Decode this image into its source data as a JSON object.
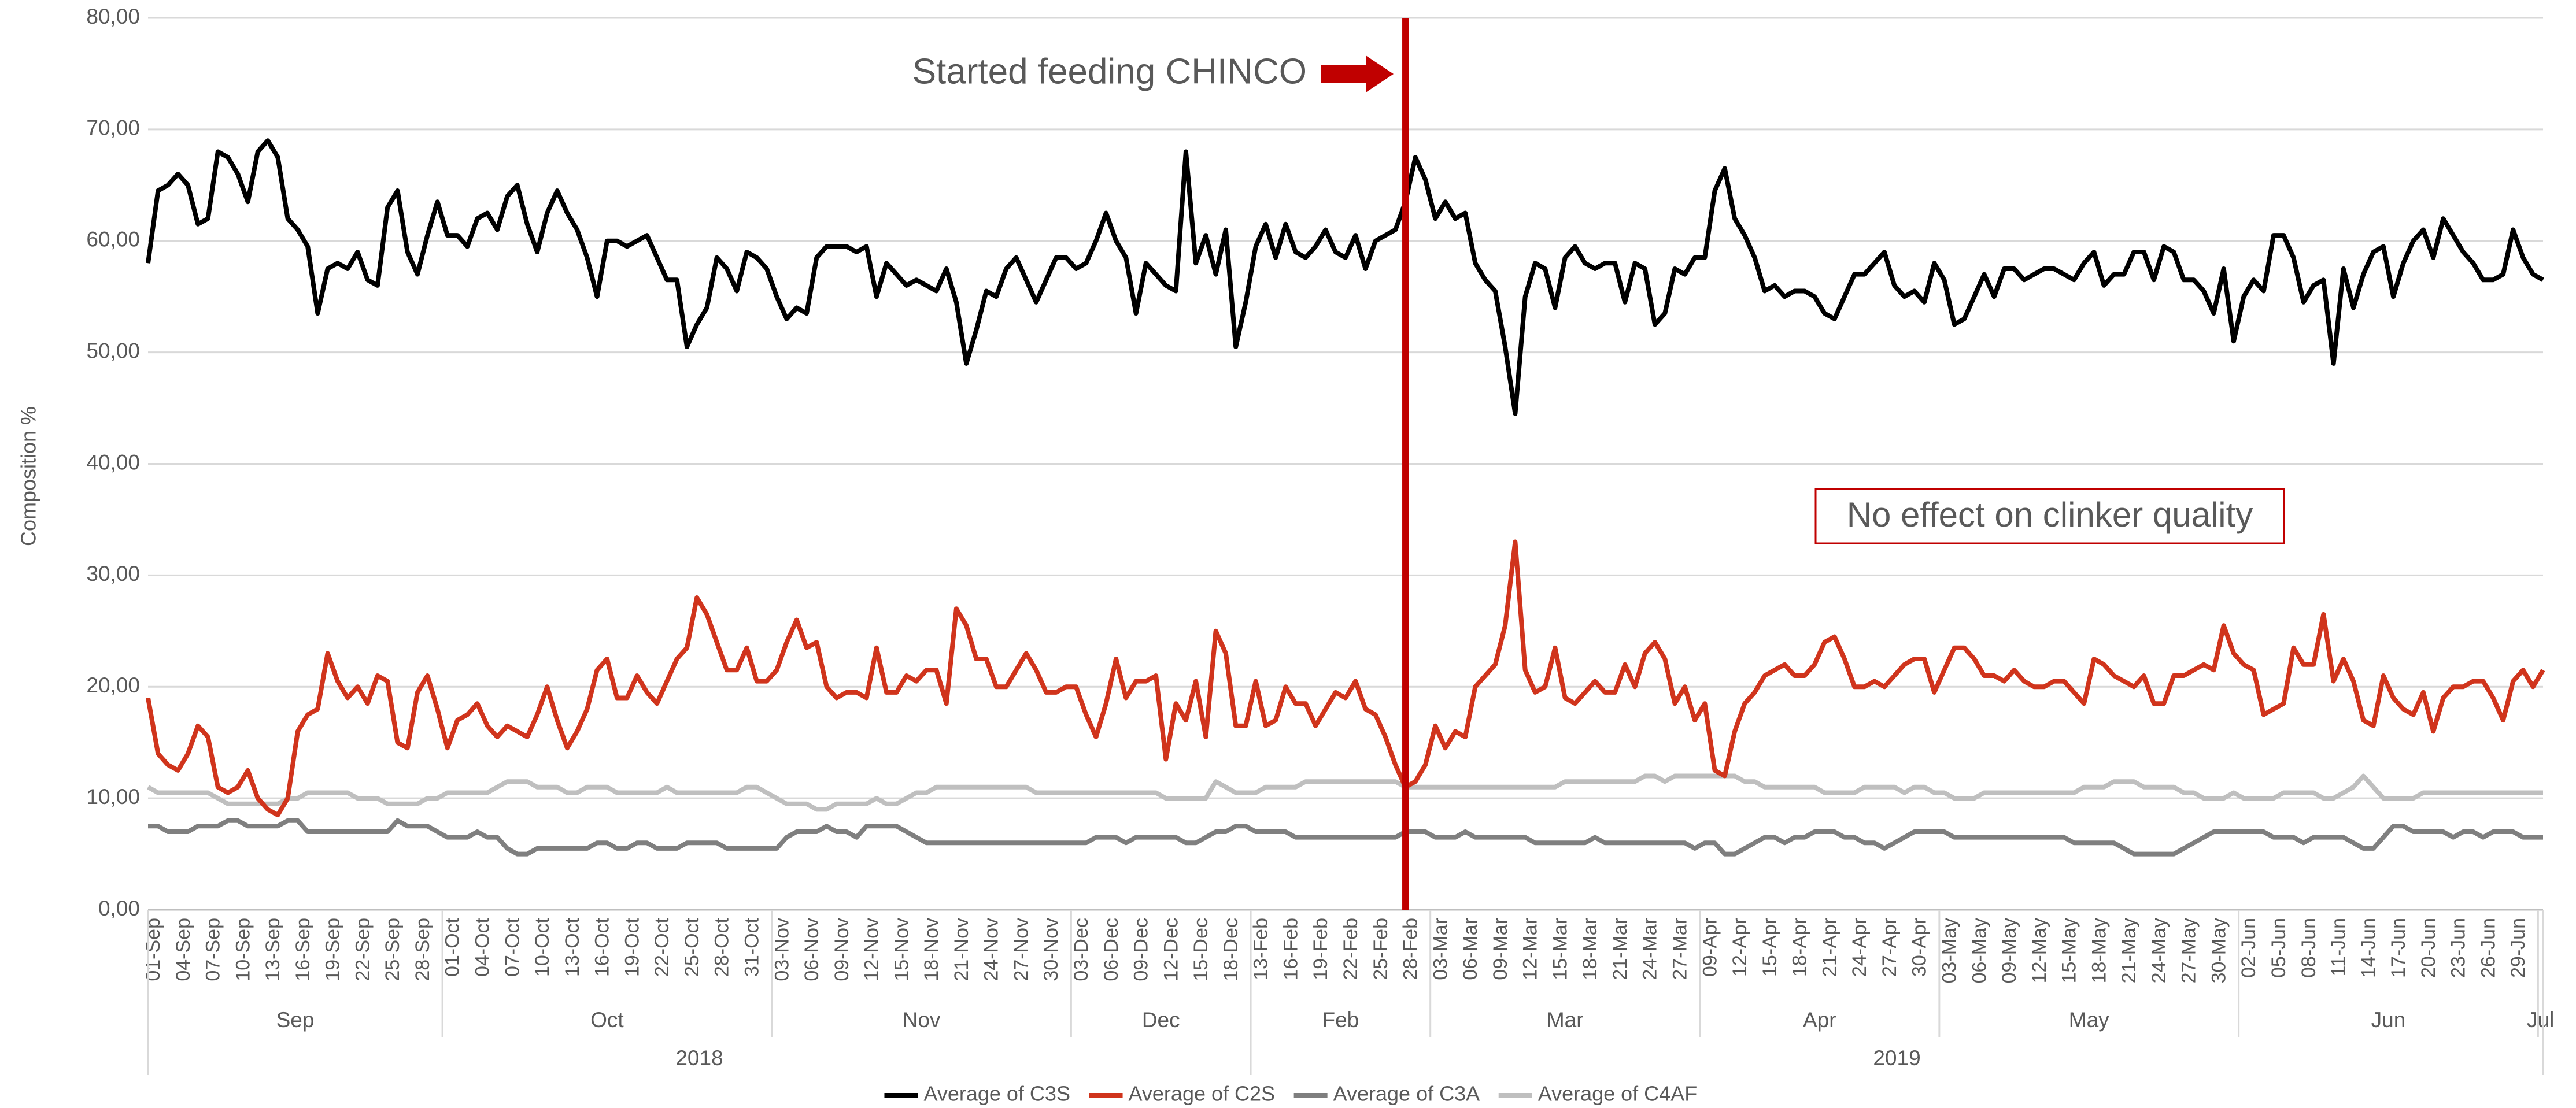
{
  "chart_data": {
    "type": "line",
    "ylabel": "Composition %",
    "ylim": [
      0,
      80
    ],
    "yticks": [
      {
        "value": 0,
        "label": "0,00"
      },
      {
        "value": 10,
        "label": "10,00"
      },
      {
        "value": 20,
        "label": "20,00"
      },
      {
        "value": 30,
        "label": "30,00"
      },
      {
        "value": 40,
        "label": "40,00"
      },
      {
        "value": 50,
        "label": "50,00"
      },
      {
        "value": 60,
        "label": "60,00"
      },
      {
        "value": 70,
        "label": "70,00"
      },
      {
        "value": 80,
        "label": "80,00"
      }
    ],
    "grid": true,
    "legend": "bottom",
    "categories": [
      "01-Sep",
      null,
      null,
      "04-Sep",
      null,
      null,
      "07-Sep",
      null,
      null,
      "10-Sep",
      null,
      null,
      "13-Sep",
      null,
      null,
      "16-Sep",
      null,
      null,
      "19-Sep",
      null,
      null,
      "22-Sep",
      null,
      null,
      "25-Sep",
      null,
      null,
      "28-Sep",
      null,
      null,
      "01-Oct",
      null,
      null,
      "04-Oct",
      null,
      null,
      "07-Oct",
      null,
      null,
      "10-Oct",
      null,
      null,
      "13-Oct",
      null,
      null,
      "16-Oct",
      null,
      null,
      "19-Oct",
      null,
      null,
      "22-Oct",
      null,
      null,
      "25-Oct",
      null,
      null,
      "28-Oct",
      null,
      null,
      "31-Oct",
      null,
      null,
      "03-Nov",
      null,
      null,
      "06-Nov",
      null,
      null,
      "09-Nov",
      null,
      null,
      "12-Nov",
      null,
      null,
      "15-Nov",
      null,
      null,
      "18-Nov",
      null,
      null,
      "21-Nov",
      null,
      null,
      "24-Nov",
      null,
      null,
      "27-Nov",
      null,
      null,
      "30-Nov",
      null,
      null,
      "03-Dec",
      null,
      null,
      "06-Dec",
      null,
      null,
      "09-Dec",
      null,
      null,
      "12-Dec",
      null,
      null,
      "15-Dec",
      null,
      null,
      "18-Dec",
      null,
      null,
      "13-Feb",
      null,
      null,
      "16-Feb",
      null,
      null,
      "19-Feb",
      null,
      null,
      "22-Feb",
      null,
      null,
      "25-Feb",
      null,
      null,
      "28-Feb",
      null,
      null,
      "03-Mar",
      null,
      null,
      "06-Mar",
      null,
      null,
      "09-Mar",
      null,
      null,
      "12-Mar",
      null,
      null,
      "15-Mar",
      null,
      null,
      "18-Mar",
      null,
      null,
      "21-Mar",
      null,
      null,
      "24-Mar",
      null,
      null,
      "27-Mar",
      null,
      null,
      "09-Apr",
      null,
      null,
      "12-Apr",
      null,
      null,
      "15-Apr",
      null,
      null,
      "18-Apr",
      null,
      null,
      "21-Apr",
      null,
      null,
      "24-Apr",
      null,
      null,
      "27-Apr",
      null,
      null,
      "30-Apr",
      null,
      null,
      "03-May",
      null,
      null,
      "06-May",
      null,
      null,
      "09-May",
      null,
      null,
      "12-May",
      null,
      null,
      "15-May",
      null,
      null,
      "18-May",
      null,
      null,
      "21-May",
      null,
      null,
      "24-May",
      null,
      null,
      "27-May",
      null,
      null,
      "30-May",
      null,
      null,
      "02-Jun",
      null,
      null,
      "05-Jun",
      null,
      null,
      "08-Jun",
      null,
      null,
      "11-Jun",
      null,
      null,
      "14-Jun",
      null,
      null,
      "17-Jun",
      null,
      null,
      "20-Jun",
      null,
      null,
      "23-Jun",
      null,
      null,
      "26-Jun",
      null,
      null,
      "29-Jun",
      null,
      null,
      null
    ],
    "years": [
      {
        "label": "2018",
        "months": [
          {
            "label": "Sep"
          },
          {
            "label": "Oct"
          },
          {
            "label": "Nov"
          },
          {
            "label": "Dec"
          }
        ]
      },
      {
        "label": "2019",
        "months": [
          {
            "label": "Feb"
          },
          {
            "label": "Mar"
          },
          {
            "label": "Apr"
          },
          {
            "label": "May"
          },
          {
            "label": "Jun"
          },
          {
            "label": "Jul"
          }
        ]
      }
    ],
    "series": [
      {
        "name": "Average of C3S",
        "color": "#000000",
        "values": [
          58,
          64.5,
          65,
          66,
          65,
          61.5,
          62,
          68,
          67.5,
          66,
          63.5,
          68,
          69,
          67.5,
          62,
          61,
          59.5,
          53.5,
          57.5,
          58,
          57.5,
          59,
          56.5,
          56,
          63,
          64.5,
          59,
          57,
          60.5,
          63.5,
          60.5,
          60.5,
          59.5,
          62,
          62.5,
          61,
          64,
          65,
          61.5,
          59,
          62.5,
          64.5,
          62.5,
          61,
          58.5,
          55,
          60,
          60,
          59.5,
          60,
          60.5,
          58.5,
          56.5,
          56.5,
          50.5,
          52.5,
          54,
          58.5,
          57.5,
          55.5,
          59,
          58.5,
          57.5,
          55,
          53,
          54,
          53.5,
          58.5,
          59.5,
          59.5,
          59.5,
          59,
          59.5,
          55,
          58,
          57,
          56,
          56.5,
          56,
          55.5,
          57.5,
          54.5,
          49,
          52,
          55.5,
          55,
          57.5,
          58.5,
          56.5,
          54.5,
          56.5,
          58.5,
          58.5,
          57.5,
          58,
          60,
          62.5,
          60,
          58.5,
          53.5,
          58,
          57,
          56,
          55.5,
          68,
          58,
          60.5,
          57,
          61,
          50.5,
          54.5,
          59.5,
          61.5,
          58.5,
          61.5,
          59,
          58.5,
          59.5,
          61,
          59,
          58.5,
          60.5,
          57.5,
          60,
          60.5,
          61,
          63.5,
          67.5,
          65.5,
          62,
          63.5,
          62,
          62.5,
          58,
          56.5,
          55.5,
          50.5,
          44.5,
          55,
          58,
          57.5,
          54,
          58.5,
          59.5,
          58,
          57.5,
          58,
          58,
          54.5,
          58,
          57.5,
          52.5,
          53.5,
          57.5,
          57,
          58.5,
          58.5,
          64.5,
          66.5,
          62,
          60.5,
          58.5,
          55.5,
          56,
          55,
          55.5,
          55.5,
          55,
          53.5,
          53,
          55,
          57,
          57,
          58,
          59,
          56,
          55,
          55.5,
          54.5,
          58,
          56.5,
          52.5,
          53,
          55,
          57,
          55,
          57.5,
          57.5,
          56.5,
          57,
          57.5,
          57.5,
          57,
          56.5,
          58,
          59,
          56,
          57,
          57,
          59,
          59,
          56.5,
          59.5,
          59,
          56.5,
          56.5,
          55.5,
          53.5,
          57.5,
          51,
          55,
          56.5,
          55.5,
          60.5,
          60.5,
          58.5,
          54.5,
          56,
          56.5,
          49,
          57.5,
          54,
          57,
          59,
          59.5,
          55,
          58,
          60,
          61,
          58.5,
          62,
          60.5,
          59,
          58,
          56.5,
          56.5,
          57,
          61,
          58.5,
          57,
          56.5
        ]
      },
      {
        "name": "Average of C2S",
        "color": "#d0341c",
        "values": [
          19,
          14,
          13,
          12.5,
          14,
          16.5,
          15.5,
          11,
          10.5,
          11,
          12.5,
          10,
          9,
          8.5,
          10,
          16,
          17.5,
          18,
          23,
          20.5,
          19,
          20,
          18.5,
          21,
          20.5,
          15,
          14.5,
          19.5,
          21,
          18,
          14.5,
          17,
          17.5,
          18.5,
          16.5,
          15.5,
          16.5,
          16,
          15.5,
          17.5,
          20,
          17,
          14.5,
          16,
          18,
          21.5,
          22.5,
          19,
          19,
          21,
          19.5,
          18.5,
          20.5,
          22.5,
          23.5,
          28,
          26.5,
          24,
          21.5,
          21.5,
          23.5,
          20.5,
          20.5,
          21.5,
          24,
          26,
          23.5,
          24,
          20,
          19,
          19.5,
          19.5,
          19,
          23.5,
          19.5,
          19.5,
          21,
          20.5,
          21.5,
          21.5,
          18.5,
          27,
          25.5,
          22.5,
          22.5,
          20,
          20,
          21.5,
          23,
          21.5,
          19.5,
          19.5,
          20,
          20,
          17.5,
          15.5,
          18.5,
          22.5,
          19,
          20.5,
          20.5,
          21,
          13.5,
          18.5,
          17,
          20.5,
          15.5,
          25,
          23,
          16.5,
          16.5,
          20.5,
          16.5,
          17,
          20,
          18.5,
          18.5,
          16.5,
          18,
          19.5,
          19,
          20.5,
          18,
          17.5,
          15.5,
          13,
          11,
          11.5,
          13,
          16.5,
          14.5,
          16,
          15.5,
          20,
          21,
          22,
          25.5,
          33,
          21.5,
          19.5,
          20,
          23.5,
          19,
          18.5,
          19.5,
          20.5,
          19.5,
          19.5,
          22,
          20,
          23,
          24,
          22.5,
          18.5,
          20,
          17,
          18.5,
          12.5,
          12,
          16,
          18.5,
          19.5,
          21,
          21.5,
          22,
          21,
          21,
          22,
          24,
          24.5,
          22.5,
          20,
          20,
          20.5,
          20,
          21,
          22,
          22.5,
          22.5,
          19.5,
          21.5,
          23.5,
          23.5,
          22.5,
          21,
          21,
          20.5,
          21.5,
          20.5,
          20,
          20,
          20.5,
          20.5,
          19.5,
          18.5,
          22.5,
          22,
          21,
          20.5,
          20,
          21,
          18.5,
          18.5,
          21,
          21,
          21.5,
          22,
          21.5,
          25.5,
          23,
          22,
          21.5,
          17.5,
          18,
          18.5,
          23.5,
          22,
          22,
          26.5,
          20.5,
          22.5,
          20.5,
          17,
          16.5,
          21,
          19,
          18,
          17.5,
          19.5,
          16,
          19,
          20,
          20,
          20.5,
          20.5,
          19,
          17,
          20.5,
          21.5,
          20,
          21.5
        ]
      },
      {
        "name": "Average of C3A",
        "color": "#7f7f7f",
        "values": [
          7.5,
          7.5,
          7,
          7,
          7,
          7.5,
          7.5,
          7.5,
          8,
          8,
          7.5,
          7.5,
          7.5,
          7.5,
          8,
          8,
          7,
          7,
          7,
          7,
          7,
          7,
          7,
          7,
          7,
          8,
          7.5,
          7.5,
          7.5,
          7,
          6.5,
          6.5,
          6.5,
          7,
          6.5,
          6.5,
          5.5,
          5,
          5,
          5.5,
          5.5,
          5.5,
          5.5,
          5.5,
          5.5,
          6,
          6,
          5.5,
          5.5,
          6,
          6,
          5.5,
          5.5,
          5.5,
          6,
          6,
          6,
          6,
          5.5,
          5.5,
          5.5,
          5.5,
          5.5,
          5.5,
          6.5,
          7,
          7,
          7,
          7.5,
          7,
          7,
          6.5,
          7.5,
          7.5,
          7.5,
          7.5,
          7,
          6.5,
          6,
          6,
          6,
          6,
          6,
          6,
          6,
          6,
          6,
          6,
          6,
          6,
          6,
          6,
          6,
          6,
          6,
          6.5,
          6.5,
          6.5,
          6,
          6.5,
          6.5,
          6.5,
          6.5,
          6.5,
          6,
          6,
          6.5,
          7,
          7,
          7.5,
          7.5,
          7,
          7,
          7,
          7,
          6.5,
          6.5,
          6.5,
          6.5,
          6.5,
          6.5,
          6.5,
          6.5,
          6.5,
          6.5,
          6.5,
          7,
          7,
          7,
          6.5,
          6.5,
          6.5,
          7,
          6.5,
          6.5,
          6.5,
          6.5,
          6.5,
          6.5,
          6,
          6,
          6,
          6,
          6,
          6,
          6.5,
          6,
          6,
          6,
          6,
          6,
          6,
          6,
          6,
          6,
          5.5,
          6,
          6,
          5,
          5,
          5.5,
          6,
          6.5,
          6.5,
          6,
          6.5,
          6.5,
          7,
          7,
          7,
          6.5,
          6.5,
          6,
          6,
          5.5,
          6,
          6.5,
          7,
          7,
          7,
          7,
          6.5,
          6.5,
          6.5,
          6.5,
          6.5,
          6.5,
          6.5,
          6.5,
          6.5,
          6.5,
          6.5,
          6.5,
          6,
          6,
          6,
          6,
          6,
          5.5,
          5,
          5,
          5,
          5,
          5,
          5.5,
          6,
          6.5,
          7,
          7,
          7,
          7,
          7,
          7,
          6.5,
          6.5,
          6.5,
          6,
          6.5,
          6.5,
          6.5,
          6.5,
          6,
          5.5,
          5.5,
          6.5,
          7.5,
          7.5,
          7,
          7,
          7,
          7,
          6.5,
          7,
          7,
          6.5,
          7,
          7,
          7,
          6.5,
          6.5,
          6.5
        ]
      },
      {
        "name": "Average of C4AF",
        "color": "#bfbfbf",
        "values": [
          11,
          10.5,
          10.5,
          10.5,
          10.5,
          10.5,
          10.5,
          10,
          9.5,
          9.5,
          9.5,
          9.5,
          9.5,
          9.5,
          10,
          10,
          10.5,
          10.5,
          10.5,
          10.5,
          10.5,
          10,
          10,
          10,
          9.5,
          9.5,
          9.5,
          9.5,
          10,
          10,
          10.5,
          10.5,
          10.5,
          10.5,
          10.5,
          11,
          11.5,
          11.5,
          11.5,
          11,
          11,
          11,
          10.5,
          10.5,
          11,
          11,
          11,
          10.5,
          10.5,
          10.5,
          10.5,
          10.5,
          11,
          10.5,
          10.5,
          10.5,
          10.5,
          10.5,
          10.5,
          10.5,
          11,
          11,
          10.5,
          10,
          9.5,
          9.5,
          9.5,
          9,
          9,
          9.5,
          9.5,
          9.5,
          9.5,
          10,
          9.5,
          9.5,
          10,
          10.5,
          10.5,
          11,
          11,
          11,
          11,
          11,
          11,
          11,
          11,
          11,
          11,
          10.5,
          10.5,
          10.5,
          10.5,
          10.5,
          10.5,
          10.5,
          10.5,
          10.5,
          10.5,
          10.5,
          10.5,
          10.5,
          10,
          10,
          10,
          10,
          10,
          11.5,
          11,
          10.5,
          10.5,
          10.5,
          11,
          11,
          11,
          11,
          11.5,
          11.5,
          11.5,
          11.5,
          11.5,
          11.5,
          11.5,
          11.5,
          11.5,
          11.5,
          11,
          11,
          11,
          11,
          11,
          11,
          11,
          11,
          11,
          11,
          11,
          11,
          11,
          11,
          11,
          11,
          11.5,
          11.5,
          11.5,
          11.5,
          11.5,
          11.5,
          11.5,
          11.5,
          12,
          12,
          11.5,
          12,
          12,
          12,
          12,
          12,
          12,
          12,
          11.5,
          11.5,
          11,
          11,
          11,
          11,
          11,
          11,
          10.5,
          10.5,
          10.5,
          10.5,
          11,
          11,
          11,
          11,
          10.5,
          11,
          11,
          10.5,
          10.5,
          10,
          10,
          10,
          10.5,
          10.5,
          10.5,
          10.5,
          10.5,
          10.5,
          10.5,
          10.5,
          10.5,
          10.5,
          11,
          11,
          11,
          11.5,
          11.5,
          11.5,
          11,
          11,
          11,
          11,
          10.5,
          10.5,
          10,
          10,
          10,
          10.5,
          10,
          10,
          10,
          10,
          10.5,
          10.5,
          10.5,
          10.5,
          10,
          10,
          10.5,
          11,
          12,
          11,
          10,
          10,
          10,
          10,
          10.5,
          10.5,
          10.5,
          10.5,
          10.5,
          10.5,
          10.5,
          10.5,
          10.5,
          10.5,
          10.5,
          10.5,
          10.5
        ]
      }
    ],
    "vline": {
      "at": "28-Feb",
      "color": "#c00000"
    },
    "annotations": [
      {
        "text": "Started feeding CHINCO",
        "color": "#c00000"
      },
      {
        "text": "No effect on clinker quality",
        "color": "#c00000"
      }
    ]
  }
}
